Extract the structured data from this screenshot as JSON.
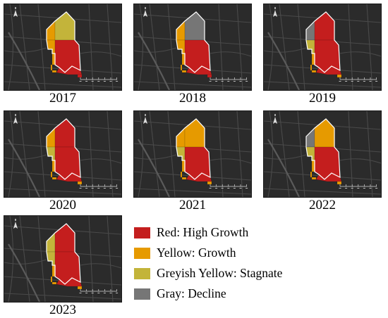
{
  "colors": {
    "high_growth": "#c41e1e",
    "growth": "#e69a00",
    "stagnate": "#c3b43a",
    "decline": "#767676",
    "map_background": "#2b2b2b",
    "roads": "#4a4a4a",
    "boundary": "#ffffff"
  },
  "icons": {
    "north_arrow": "north-arrow-icon",
    "scale_bar": "scale-bar-icon"
  },
  "panels": [
    {
      "year": "2017",
      "zones": {
        "nw": "growth",
        "n": "stagnate",
        "w": "growth",
        "c": "high_growth",
        "s": "high_growth",
        "sw": "growth",
        "se": "high_growth"
      }
    },
    {
      "year": "2018",
      "zones": {
        "nw": "growth",
        "n": "decline",
        "w": "growth",
        "c": "high_growth",
        "s": "high_growth",
        "sw": "growth",
        "se": "high_growth"
      }
    },
    {
      "year": "2019",
      "zones": {
        "nw": "decline",
        "n": "high_growth",
        "w": "stagnate",
        "c": "high_growth",
        "s": "high_growth",
        "sw": "growth",
        "se": "growth"
      }
    },
    {
      "year": "2020",
      "zones": {
        "nw": "growth",
        "n": "high_growth",
        "w": "stagnate",
        "c": "high_growth",
        "s": "high_growth",
        "sw": "growth",
        "se": "growth"
      }
    },
    {
      "year": "2021",
      "zones": {
        "nw": "growth",
        "n": "growth",
        "w": "stagnate",
        "c": "high_growth",
        "s": "high_growth",
        "sw": "growth",
        "se": "growth"
      }
    },
    {
      "year": "2022",
      "zones": {
        "nw": "decline",
        "n": "growth",
        "w": "stagnate",
        "c": "high_growth",
        "s": "high_growth",
        "sw": "growth",
        "se": "growth"
      }
    },
    {
      "year": "2023",
      "zones": {
        "nw": "stagnate",
        "n": "high_growth",
        "w": "stagnate",
        "c": "high_growth",
        "s": "high_growth",
        "sw": "growth",
        "se": "growth"
      }
    }
  ],
  "legend": [
    {
      "key": "high_growth",
      "label": "Red: High Growth"
    },
    {
      "key": "growth",
      "label": "Yellow: Growth"
    },
    {
      "key": "stagnate",
      "label": "Greyish Yellow: Stagnate"
    },
    {
      "key": "decline",
      "label": "Gray: Decline"
    }
  ]
}
